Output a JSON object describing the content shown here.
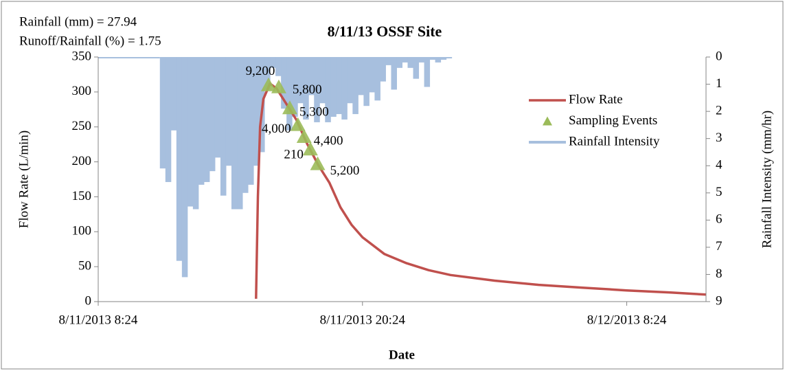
{
  "chart_data": {
    "type": "line",
    "title": "8/11/13 OSSF Site",
    "annotations": [
      "Rainfall (mm) = 27.94",
      "Runoff/Rainfall (%) = 1.75"
    ],
    "xlabel": "Date",
    "ylabel": "Flow Rate (L/min)",
    "y2label": "Rainfall Intensity (mm/hr)",
    "xlim": [
      "8/11/2013 8:24",
      "8/12/2013 12:00"
    ],
    "xticks": [
      "8/11/2013 8:24",
      "8/11/2013 20:24",
      "8/12/2013 8:24"
    ],
    "ylim": [
      0,
      350
    ],
    "yticks": [
      0,
      50,
      100,
      150,
      200,
      250,
      300,
      350
    ],
    "y2lim": [
      9,
      0
    ],
    "y2ticks": [
      0,
      1,
      2,
      3,
      4,
      5,
      6,
      7,
      8,
      9
    ],
    "y2_inverted": true,
    "legend": "right",
    "series": [
      {
        "name": "Flow Rate",
        "type": "line",
        "color": "#c0504d",
        "x": [
          "8/11/2013 15:34",
          "8/11/2013 15:39",
          "8/11/2013 15:45",
          "8/11/2013 15:54",
          "8/11/2013 16:12",
          "8/11/2013 16:30",
          "8/11/2013 16:54",
          "8/11/2013 17:24",
          "8/11/2013 17:54",
          "8/11/2013 18:24",
          "8/11/2013 18:54",
          "8/11/2013 19:24",
          "8/11/2013 19:54",
          "8/11/2013 20:24",
          "8/11/2013 21:24",
          "8/11/2013 22:24",
          "8/11/2013 23:24",
          "8/12/2013 0:24",
          "8/12/2013 2:24",
          "8/12/2013 4:24",
          "8/12/2013 6:24",
          "8/12/2013 8:24",
          "8/12/2013 10:24",
          "8/12/2013 12:00"
        ],
        "values": [
          4,
          150,
          250,
          290,
          312,
          305,
          285,
          260,
          225,
          195,
          170,
          135,
          110,
          92,
          68,
          55,
          45,
          38,
          30,
          24,
          20,
          16,
          13,
          10
        ]
      },
      {
        "name": "Sampling Events",
        "type": "scatter",
        "color": "#9bbb59",
        "x": [
          "8/11/2013 16:08",
          "8/11/2013 16:36",
          "8/11/2013 17:06",
          "8/11/2013 17:28",
          "8/11/2013 17:45",
          "8/11/2013 18:02",
          "8/11/2013 18:22"
        ],
        "values": [
          309,
          306,
          276,
          252,
          235,
          217,
          196
        ],
        "labels": [
          "9,200",
          "5,800",
          "5,300",
          "4,000",
          "4,400",
          "210",
          "5,200"
        ]
      },
      {
        "name": "Rainfall Intensity",
        "type": "bar",
        "axis": "y2",
        "color": "#a7bfde",
        "x": [
          "8/11/2013 11:12",
          "8/11/2013 11:27",
          "8/11/2013 11:42",
          "8/11/2013 11:57",
          "8/11/2013 12:12",
          "8/11/2013 12:27",
          "8/11/2013 12:42",
          "8/11/2013 12:57",
          "8/11/2013 13:12",
          "8/11/2013 13:27",
          "8/11/2013 13:42",
          "8/11/2013 13:57",
          "8/11/2013 14:12",
          "8/11/2013 14:27",
          "8/11/2013 14:42",
          "8/11/2013 14:57",
          "8/11/2013 15:12",
          "8/11/2013 15:27",
          "8/11/2013 15:42",
          "8/11/2013 15:57",
          "8/11/2013 16:12",
          "8/11/2013 16:27",
          "8/11/2013 16:42",
          "8/11/2013 16:57",
          "8/11/2013 17:12",
          "8/11/2013 17:27",
          "8/11/2013 17:42",
          "8/11/2013 17:57",
          "8/11/2013 18:12",
          "8/11/2013 18:27",
          "8/11/2013 18:42",
          "8/11/2013 18:57",
          "8/11/2013 19:12",
          "8/11/2013 19:27",
          "8/11/2013 19:42",
          "8/11/2013 19:57",
          "8/11/2013 20:12",
          "8/11/2013 20:27",
          "8/11/2013 20:42",
          "8/11/2013 20:57",
          "8/11/2013 21:12",
          "8/11/2013 21:27",
          "8/11/2013 21:42",
          "8/11/2013 21:57",
          "8/11/2013 22:12",
          "8/11/2013 22:27",
          "8/11/2013 22:42",
          "8/11/2013 22:57",
          "8/11/2013 23:12",
          "8/11/2013 23:27",
          "8/11/2013 23:42",
          "8/11/2013 23:57",
          "8/12/2013 0:12"
        ],
        "values": [
          4.1,
          4.6,
          2.7,
          7.5,
          8.1,
          5.5,
          5.6,
          4.7,
          4.6,
          4.2,
          3.7,
          5.1,
          4.0,
          5.6,
          5.6,
          5.0,
          4.7,
          4.0,
          3.5,
          1.2,
          0.4,
          0.7,
          1.9,
          2.7,
          2.2,
          1.7,
          2.3,
          1.4,
          2.4,
          1.7,
          2.4,
          2.2,
          2.1,
          2.3,
          1.7,
          2.1,
          1.4,
          1.8,
          1.3,
          1.6,
          0.9,
          0.3,
          1.2,
          0.4,
          0.2,
          0.4,
          0.8,
          0.2,
          1.1,
          0.1,
          0.2,
          0.1,
          0
        ]
      }
    ]
  }
}
